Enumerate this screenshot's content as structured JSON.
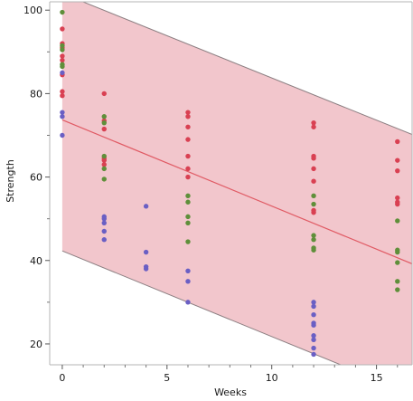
{
  "chart_data": {
    "type": "scatter",
    "title": "",
    "xlabel": "Weeks",
    "ylabel": "Strength",
    "xlim": [
      -0.6,
      16.7
    ],
    "ylim": [
      15,
      102
    ],
    "x_ticks": [
      0,
      5,
      10,
      15
    ],
    "y_ticks": [
      20,
      40,
      60,
      80,
      100
    ],
    "grid": false,
    "colors": {
      "band_fill": "#f2c6cc",
      "band_edge": "#8c7f82",
      "fit_line": "#e05a64",
      "series_red": "#d94052",
      "series_green": "#5f8f3a",
      "series_blue": "#6a5fc4",
      "axis": "#b4b4b4"
    },
    "fit_line": {
      "x": [
        0,
        16.7
      ],
      "y": [
        73.7,
        39.2
      ]
    },
    "prediction_band": {
      "upper": {
        "x": [
          0,
          16.7
        ],
        "y": [
          104,
          70.2
        ]
      },
      "lower": {
        "x": [
          0,
          16.7
        ],
        "y": [
          42.3,
          8.0
        ]
      }
    },
    "series": [
      {
        "color": "red",
        "points": [
          [
            0,
            95.5
          ],
          [
            0,
            92.0
          ],
          [
            0,
            91.0
          ],
          [
            0,
            89.0
          ],
          [
            0,
            88.0
          ],
          [
            0,
            84.5
          ],
          [
            0,
            80.5
          ],
          [
            0,
            79.5
          ],
          [
            2,
            80.0
          ],
          [
            2,
            73.5
          ],
          [
            2,
            71.5
          ],
          [
            2,
            64.5
          ],
          [
            2,
            64.0
          ],
          [
            2,
            63.0
          ],
          [
            6,
            75.5
          ],
          [
            6,
            74.5
          ],
          [
            6,
            72.0
          ],
          [
            6,
            69.0
          ],
          [
            6,
            65.0
          ],
          [
            6,
            62.0
          ],
          [
            6,
            60.0
          ],
          [
            12,
            73.0
          ],
          [
            12,
            72.0
          ],
          [
            12,
            65.0
          ],
          [
            12,
            64.5
          ],
          [
            12,
            62.0
          ],
          [
            12,
            59.0
          ],
          [
            12,
            52.0
          ],
          [
            12,
            51.5
          ],
          [
            16,
            68.5
          ],
          [
            16,
            64.0
          ],
          [
            16,
            61.5
          ],
          [
            16,
            55.0
          ],
          [
            16,
            54.0
          ],
          [
            16,
            53.5
          ]
        ]
      },
      {
        "color": "green",
        "points": [
          [
            0,
            99.5
          ],
          [
            0,
            91.5
          ],
          [
            0,
            90.5
          ],
          [
            0,
            87.0
          ],
          [
            0,
            86.5
          ],
          [
            2,
            74.5
          ],
          [
            2,
            73.0
          ],
          [
            2,
            65.0
          ],
          [
            2,
            62.0
          ],
          [
            2,
            59.5
          ],
          [
            6,
            55.5
          ],
          [
            6,
            54.0
          ],
          [
            6,
            50.5
          ],
          [
            6,
            49.0
          ],
          [
            6,
            44.5
          ],
          [
            12,
            55.5
          ],
          [
            12,
            53.5
          ],
          [
            12,
            46.0
          ],
          [
            12,
            45.0
          ],
          [
            12,
            43.0
          ],
          [
            12,
            42.5
          ],
          [
            16,
            49.5
          ],
          [
            16,
            42.5
          ],
          [
            16,
            42.0
          ],
          [
            16,
            39.5
          ],
          [
            16,
            35.0
          ],
          [
            16,
            33.0
          ]
        ]
      },
      {
        "color": "blue",
        "points": [
          [
            0,
            85.0
          ],
          [
            0,
            75.5
          ],
          [
            0,
            74.5
          ],
          [
            0,
            70.0
          ],
          [
            2,
            50.5
          ],
          [
            2,
            50.0
          ],
          [
            2,
            49.0
          ],
          [
            2,
            47.0
          ],
          [
            2,
            45.0
          ],
          [
            4,
            53.0
          ],
          [
            4,
            42.0
          ],
          [
            4,
            38.5
          ],
          [
            4,
            38.0
          ],
          [
            6,
            37.5
          ],
          [
            6,
            35.0
          ],
          [
            6,
            30.0
          ],
          [
            12,
            30.0
          ],
          [
            12,
            29.0
          ],
          [
            12,
            27.0
          ],
          [
            12,
            25.0
          ],
          [
            12,
            24.5
          ],
          [
            12,
            22.0
          ],
          [
            12,
            21.0
          ],
          [
            12,
            19.0
          ],
          [
            12,
            17.5
          ]
        ]
      }
    ]
  }
}
